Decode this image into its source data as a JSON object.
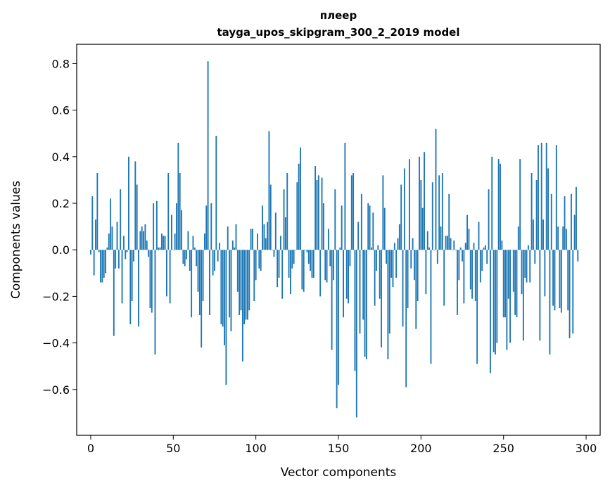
{
  "chart_data": {
    "type": "bar",
    "title": "плеер",
    "subtitle": "tayga_upos_skipgram_300_2_2019 model",
    "xlabel": "Vector components",
    "ylabel": "Components values",
    "xlim": [
      -8.5,
      308.5
    ],
    "ylim": [
      -0.797,
      0.883
    ],
    "xticks": [
      0,
      50,
      100,
      150,
      200,
      250,
      300
    ],
    "xtick_labels": [
      "0",
      "50",
      "100",
      "150",
      "200",
      "250",
      "300"
    ],
    "yticks": [
      -0.6,
      -0.4,
      -0.2,
      0.0,
      0.2,
      0.4,
      0.6,
      0.8
    ],
    "ytick_labels": [
      "−0.6",
      "−0.4",
      "−0.2",
      "0.0",
      "0.2",
      "0.4",
      "0.6",
      "0.8"
    ],
    "bar_color": "#1f77b4",
    "series": [
      {
        "name": "components",
        "values": [
          -0.02,
          0.23,
          -0.11,
          0.13,
          0.33,
          -0.01,
          -0.14,
          -0.14,
          -0.12,
          -0.1,
          0.01,
          0.07,
          0.22,
          0.1,
          -0.37,
          -0.08,
          0.12,
          -0.08,
          0.26,
          -0.23,
          0.06,
          -0.04,
          -0.01,
          0.4,
          -0.32,
          -0.22,
          -0.05,
          0.38,
          0.28,
          -0.33,
          0.08,
          0.1,
          0.08,
          0.11,
          0.04,
          -0.03,
          -0.25,
          -0.27,
          0.2,
          -0.45,
          0.21,
          0.01,
          0.01,
          0.07,
          0.06,
          0.06,
          -0.2,
          0.33,
          -0.23,
          0.15,
          0.0,
          0.07,
          0.2,
          0.46,
          0.33,
          0.17,
          -0.06,
          -0.07,
          -0.04,
          0.08,
          -0.09,
          -0.29,
          0.06,
          0.01,
          -0.07,
          -0.18,
          -0.28,
          -0.42,
          -0.22,
          0.07,
          0.19,
          0.81,
          -0.28,
          0.2,
          -0.11,
          -0.09,
          0.49,
          -0.05,
          0.03,
          -0.32,
          -0.33,
          -0.41,
          -0.58,
          0.1,
          -0.29,
          -0.35,
          0.04,
          0.01,
          0.11,
          -0.18,
          -0.28,
          -0.26,
          -0.48,
          -0.32,
          -0.3,
          -0.3,
          -0.26,
          0.09,
          0.09,
          -0.22,
          -0.13,
          0.07,
          -0.08,
          -0.09,
          0.19,
          0.11,
          0.05,
          0.12,
          0.51,
          0.28,
          0.0,
          -0.03,
          0.16,
          -0.16,
          -0.12,
          0.06,
          -0.21,
          0.26,
          0.14,
          0.33,
          -0.12,
          -0.19,
          -0.08,
          -0.06,
          0.0,
          0.29,
          0.37,
          0.44,
          -0.17,
          -0.18,
          0.0,
          -0.01,
          -0.06,
          -0.09,
          -0.12,
          -0.12,
          0.36,
          0.3,
          0.32,
          -0.2,
          0.31,
          0.2,
          -0.13,
          -0.14,
          0.09,
          -0.07,
          -0.43,
          -0.13,
          0.26,
          -0.68,
          -0.58,
          0.01,
          0.19,
          -0.29,
          0.46,
          -0.21,
          -0.23,
          -0.07,
          0.32,
          0.33,
          -0.52,
          -0.72,
          0.12,
          -0.36,
          0.24,
          -0.3,
          -0.46,
          -0.47,
          0.2,
          0.19,
          0.01,
          0.16,
          -0.24,
          -0.09,
          0.02,
          -0.21,
          -0.42,
          0.32,
          0.18,
          -0.06,
          -0.47,
          -0.36,
          -0.12,
          -0.16,
          0.03,
          -0.12,
          0.05,
          0.11,
          0.28,
          -0.33,
          0.35,
          -0.59,
          -0.25,
          0.39,
          -0.08,
          0.05,
          -0.13,
          -0.34,
          -0.22,
          0.4,
          0.3,
          0.18,
          0.42,
          -0.19,
          0.08,
          0.01,
          -0.49,
          0.29,
          0.0,
          0.52,
          -0.06,
          0.32,
          0.1,
          0.33,
          -0.24,
          0.06,
          0.06,
          0.24,
          0.05,
          0.0,
          0.04,
          0.0,
          -0.28,
          -0.13,
          0.01,
          -0.05,
          -0.23,
          0.03,
          0.15,
          0.09,
          -0.17,
          -0.21,
          0.03,
          -0.22,
          -0.49,
          0.12,
          -0.14,
          -0.09,
          0.01,
          0.02,
          -0.06,
          0.26,
          -0.53,
          0.4,
          -0.44,
          -0.45,
          -0.4,
          0.39,
          0.37,
          0.04,
          -0.29,
          -0.29,
          -0.43,
          -0.21,
          -0.4,
          0.0,
          -0.18,
          -0.28,
          -0.29,
          0.1,
          0.39,
          -0.19,
          -0.39,
          -0.12,
          -0.14,
          0.02,
          -0.14,
          0.33,
          0.13,
          -0.06,
          0.3,
          0.45,
          -0.39,
          0.46,
          0.13,
          -0.2,
          0.46,
          0.35,
          -0.45,
          0.24,
          -0.24,
          -0.26,
          0.45,
          0.1,
          -0.25,
          -0.27,
          0.1,
          0.23,
          0.09,
          -0.26,
          -0.38,
          0.24,
          -0.36,
          0.15,
          0.27,
          -0.05
        ]
      }
    ]
  }
}
